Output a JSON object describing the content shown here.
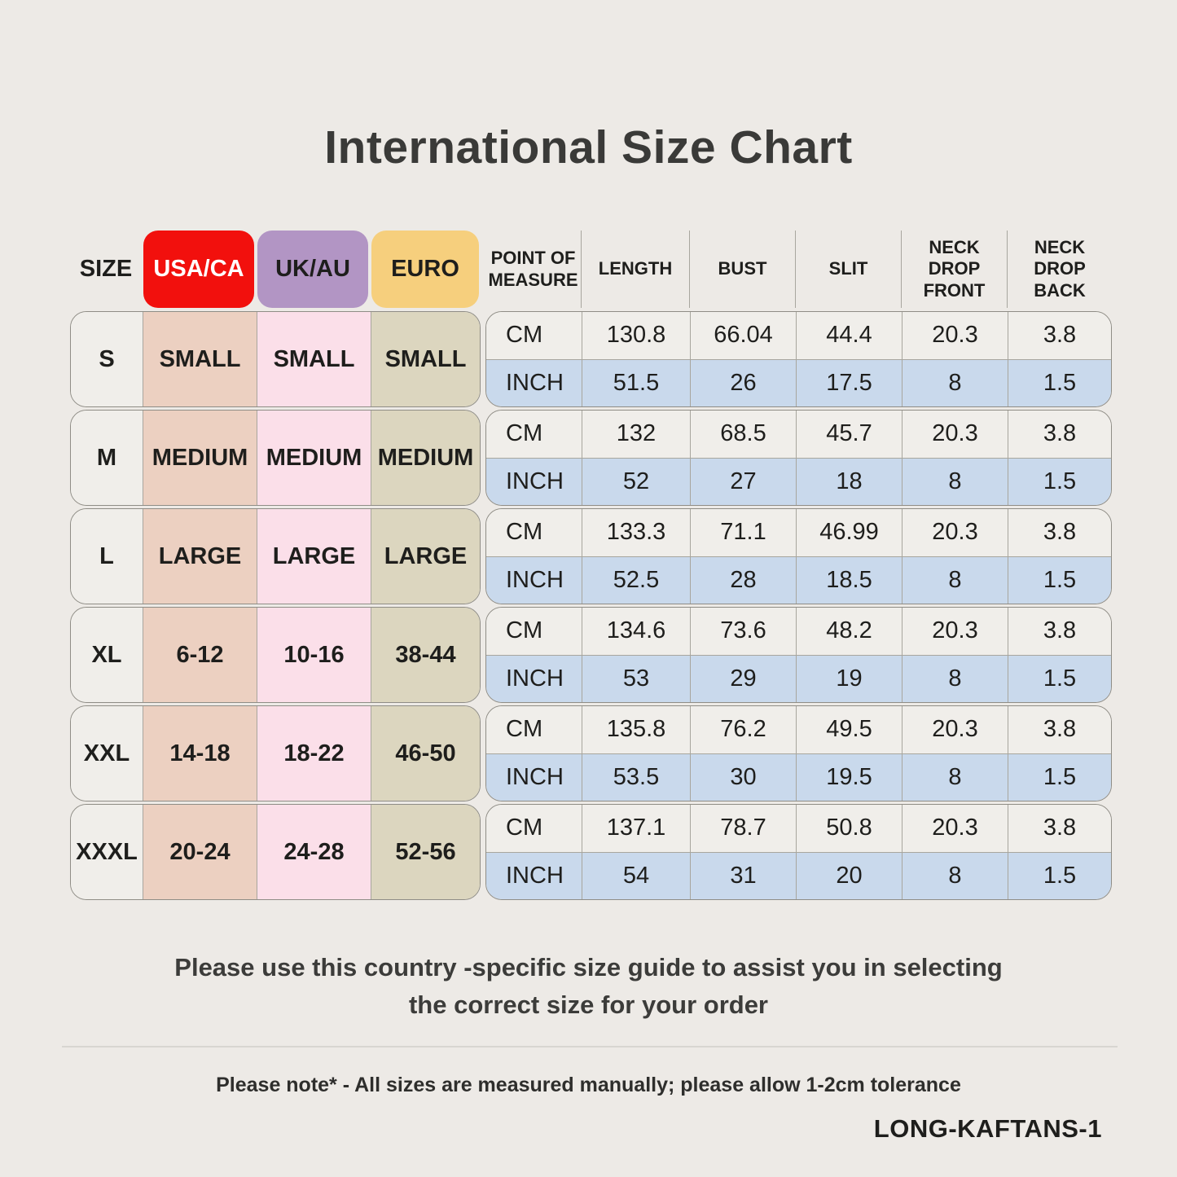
{
  "title": "International Size Chart",
  "size_table": {
    "size_header": "SIZE",
    "region_headers": [
      {
        "label": "USA/CA",
        "bg": "#f2100d",
        "text_color": "#ffffff"
      },
      {
        "label": "UK/AU",
        "bg": "#b295c4",
        "text_color": "#1e1e1c"
      },
      {
        "label": "EURO",
        "bg": "#f6cf7d",
        "text_color": "#1e1e1c"
      }
    ],
    "column_colors": {
      "size": "#f0eeea",
      "usa_ca": "#ecd0c1",
      "uk_au": "#fbdfe9",
      "euro": "#dcd6bf"
    },
    "rows": [
      {
        "size": "S",
        "usa_ca": "SMALL",
        "uk_au": "SMALL",
        "euro": "SMALL"
      },
      {
        "size": "M",
        "usa_ca": "MEDIUM",
        "uk_au": "MEDIUM",
        "euro": "MEDIUM"
      },
      {
        "size": "L",
        "usa_ca": "LARGE",
        "uk_au": "LARGE",
        "euro": "LARGE"
      },
      {
        "size": "XL",
        "usa_ca": "6-12",
        "uk_au": "10-16",
        "euro": "38-44"
      },
      {
        "size": "XXL",
        "usa_ca": "14-18",
        "uk_au": "18-22",
        "euro": "46-50"
      },
      {
        "size": "XXXL",
        "usa_ca": "20-24",
        "uk_au": "24-28",
        "euro": "52-56"
      }
    ]
  },
  "measure_table": {
    "headers": [
      "POINT OF MEASURE",
      "LENGTH",
      "BUST",
      "SLIT",
      "NECK DROP FRONT",
      "NECK DROP BACK"
    ],
    "unit_labels": {
      "cm": "CM",
      "inch": "INCH"
    },
    "row_colors": {
      "cm": "#f0eeea",
      "inch": "#c9d9ec"
    },
    "groups": [
      {
        "size": "S",
        "cm": [
          "130.8",
          "66.04",
          "44.4",
          "20.3",
          "3.8"
        ],
        "inch": [
          "51.5",
          "26",
          "17.5",
          "8",
          "1.5"
        ]
      },
      {
        "size": "M",
        "cm": [
          "132",
          "68.5",
          "45.7",
          "20.3",
          "3.8"
        ],
        "inch": [
          "52",
          "27",
          "18",
          "8",
          "1.5"
        ]
      },
      {
        "size": "L",
        "cm": [
          "133.3",
          "71.1",
          "46.99",
          "20.3",
          "3.8"
        ],
        "inch": [
          "52.5",
          "28",
          "18.5",
          "8",
          "1.5"
        ]
      },
      {
        "size": "XL",
        "cm": [
          "134.6",
          "73.6",
          "48.2",
          "20.3",
          "3.8"
        ],
        "inch": [
          "53",
          "29",
          "19",
          "8",
          "1.5"
        ]
      },
      {
        "size": "XXL",
        "cm": [
          "135.8",
          "76.2",
          "49.5",
          "20.3",
          "3.8"
        ],
        "inch": [
          "53.5",
          "30",
          "19.5",
          "8",
          "1.5"
        ]
      },
      {
        "size": "XXXL",
        "cm": [
          "137.1",
          "78.7",
          "50.8",
          "20.3",
          "3.8"
        ],
        "inch": [
          "54",
          "31",
          "20",
          "8",
          "1.5"
        ]
      }
    ]
  },
  "footer": {
    "note1_line1": "Please use this country -specific size guide to assist you in selecting",
    "note1_line2": "the correct size for your order",
    "note2": "Please note* - All sizes are measured manually; please allow 1-2cm tolerance",
    "sku": "LONG-KAFTANS-1"
  }
}
